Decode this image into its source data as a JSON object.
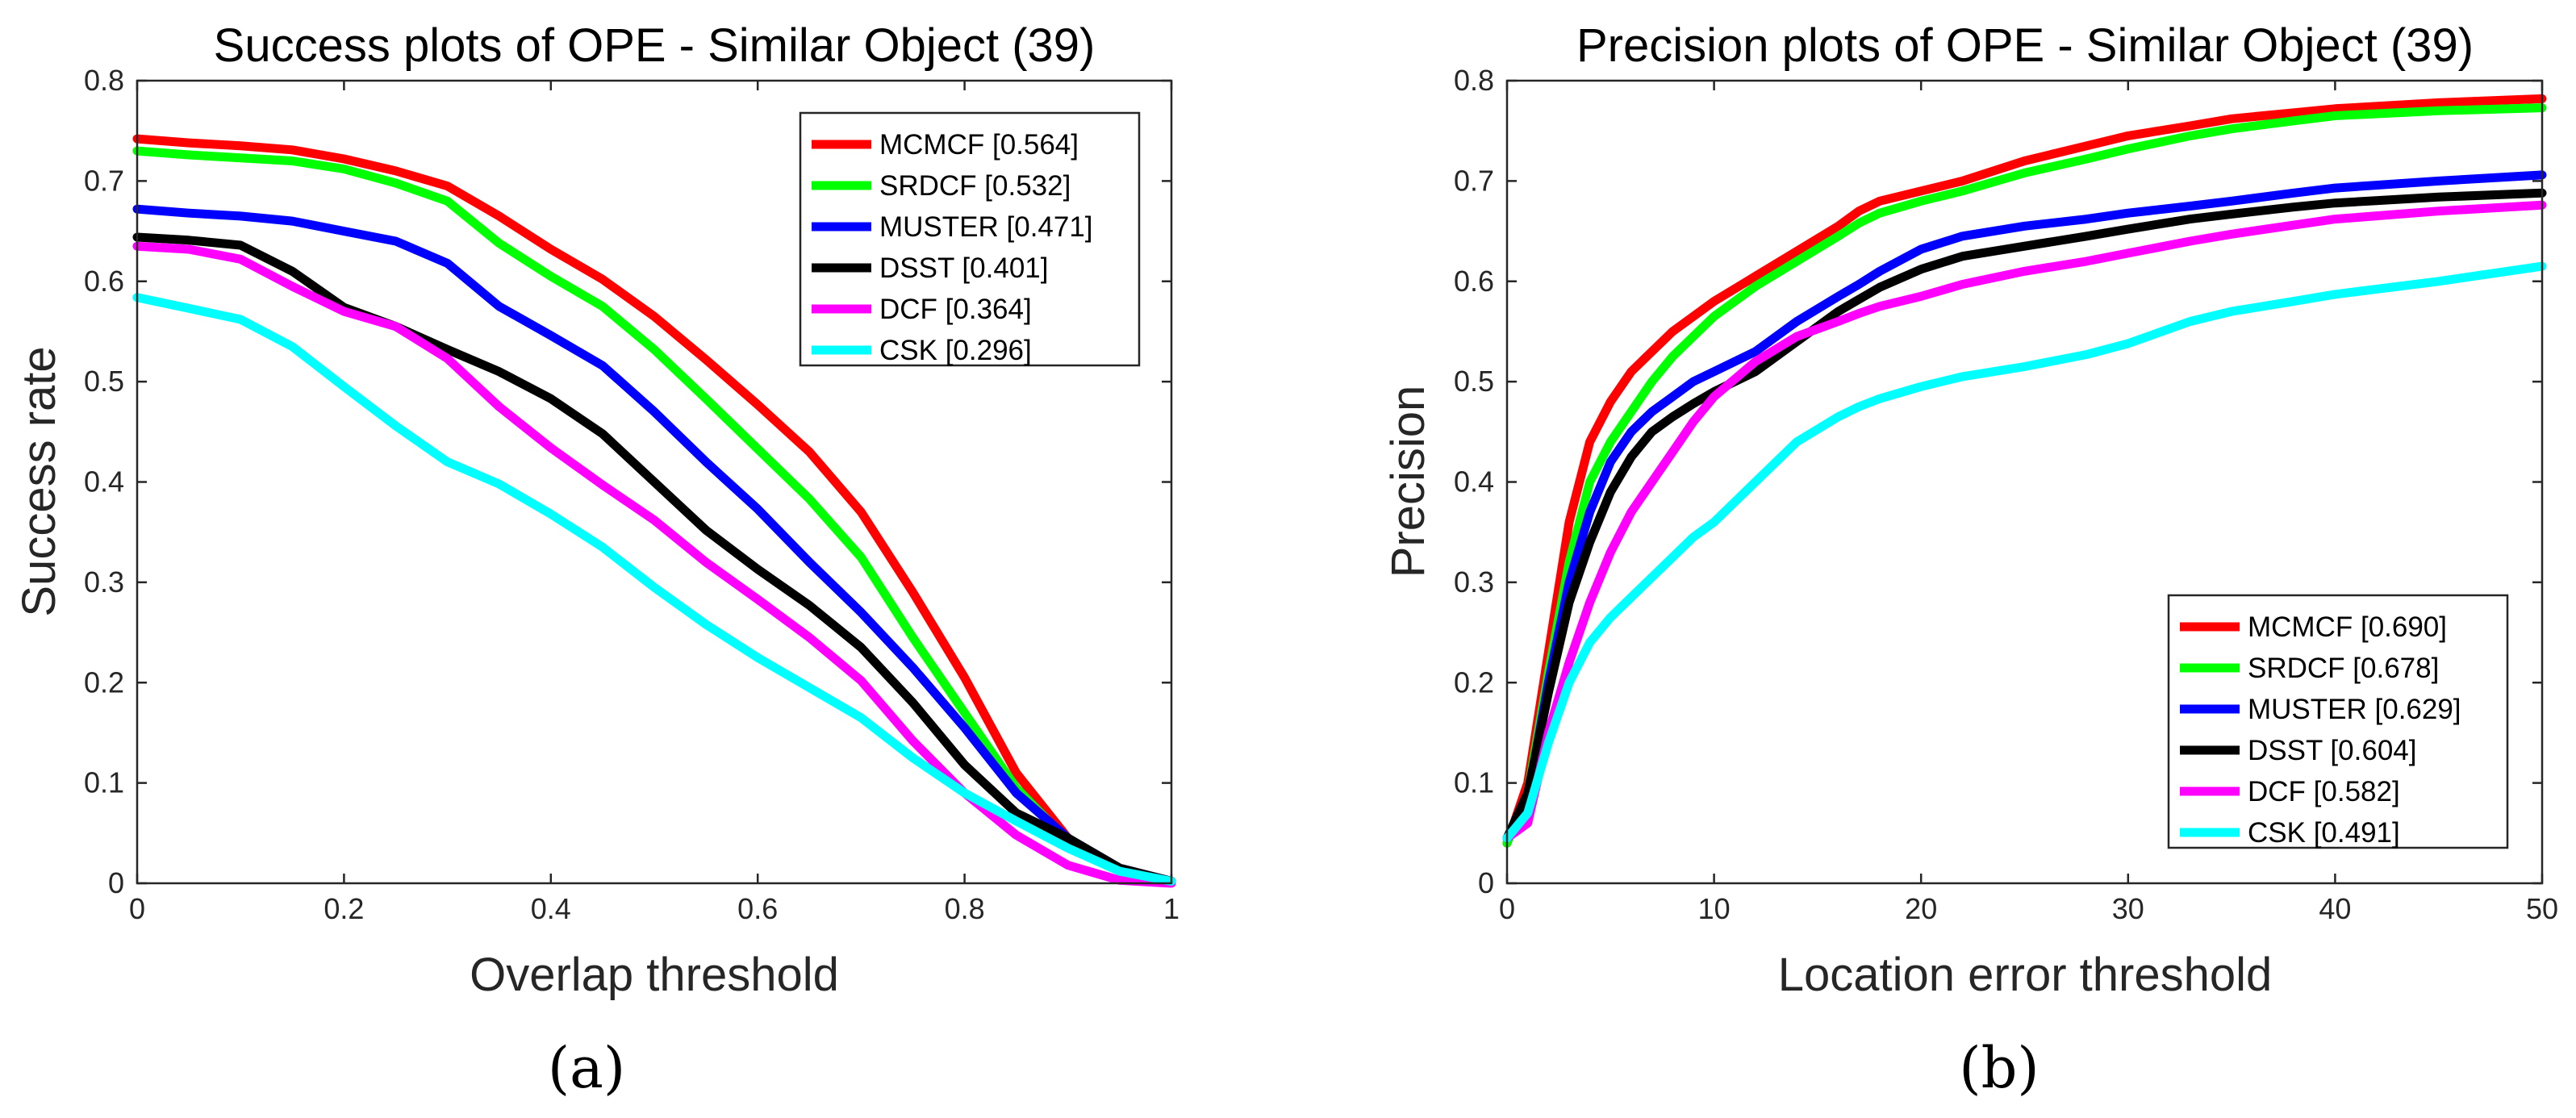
{
  "chart_data": [
    {
      "type": "line",
      "title": "Success plots of OPE - Similar Object (39)",
      "xlabel": "Overlap threshold",
      "ylabel": "Success rate",
      "xlim": [
        0,
        1
      ],
      "ylim": [
        0,
        0.8
      ],
      "xticks": [
        "0",
        "0.2",
        "0.4",
        "0.6",
        "0.8",
        "1"
      ],
      "yticks": [
        "0",
        "0.1",
        "0.2",
        "0.3",
        "0.4",
        "0.5",
        "0.6",
        "0.7",
        "0.8"
      ],
      "legend_position": "top-right",
      "caption": "(a)",
      "x": [
        0,
        0.05,
        0.1,
        0.15,
        0.2,
        0.25,
        0.3,
        0.35,
        0.4,
        0.45,
        0.5,
        0.55,
        0.6,
        0.65,
        0.7,
        0.75,
        0.8,
        0.85,
        0.9,
        0.95,
        1.0
      ],
      "series": [
        {
          "name": "MCMCF [0.564]",
          "color": "#ff0000",
          "values": [
            0.742,
            0.738,
            0.735,
            0.731,
            0.722,
            0.71,
            0.695,
            0.665,
            0.632,
            0.602,
            0.565,
            0.522,
            0.477,
            0.43,
            0.37,
            0.29,
            0.205,
            0.11,
            0.045,
            0.012,
            0.002
          ]
        },
        {
          "name": "SRDCF [0.532]",
          "color": "#00ff00",
          "values": [
            0.73,
            0.726,
            0.723,
            0.72,
            0.712,
            0.698,
            0.68,
            0.638,
            0.605,
            0.575,
            0.532,
            0.483,
            0.433,
            0.383,
            0.325,
            0.245,
            0.17,
            0.095,
            0.042,
            0.012,
            0.002
          ]
        },
        {
          "name": "MUSTER [0.471]",
          "color": "#0000ff",
          "values": [
            0.672,
            0.668,
            0.665,
            0.66,
            0.65,
            0.64,
            0.618,
            0.575,
            0.546,
            0.516,
            0.47,
            0.42,
            0.373,
            0.32,
            0.27,
            0.215,
            0.155,
            0.09,
            0.045,
            0.015,
            0.002
          ]
        },
        {
          "name": "DSST [0.401]",
          "color": "#000000",
          "values": [
            0.644,
            0.641,
            0.636,
            0.61,
            0.574,
            0.555,
            0.532,
            0.51,
            0.483,
            0.448,
            0.4,
            0.352,
            0.313,
            0.277,
            0.235,
            0.18,
            0.118,
            0.07,
            0.045,
            0.015,
            0.002
          ]
        },
        {
          "name": "DCF [0.364]",
          "color": "#ff00ff",
          "values": [
            0.635,
            0.632,
            0.622,
            0.595,
            0.57,
            0.555,
            0.523,
            0.475,
            0.434,
            0.397,
            0.362,
            0.32,
            0.283,
            0.245,
            0.202,
            0.142,
            0.09,
            0.048,
            0.018,
            0.003,
            0.0
          ]
        },
        {
          "name": "CSK [0.296]",
          "color": "#00ffff",
          "values": [
            0.584,
            0.573,
            0.562,
            0.535,
            0.495,
            0.456,
            0.42,
            0.398,
            0.368,
            0.335,
            0.295,
            0.258,
            0.225,
            0.195,
            0.165,
            0.125,
            0.09,
            0.062,
            0.035,
            0.012,
            0.002
          ]
        }
      ]
    },
    {
      "type": "line",
      "title": "Precision plots of OPE - Similar Object (39)",
      "xlabel": "Location error threshold",
      "ylabel": "Precision",
      "xlim": [
        0,
        50
      ],
      "ylim": [
        0,
        0.8
      ],
      "xticks": [
        "0",
        "10",
        "20",
        "30",
        "40",
        "50"
      ],
      "yticks": [
        "0",
        "0.1",
        "0.2",
        "0.3",
        "0.4",
        "0.5",
        "0.6",
        "0.7",
        "0.8"
      ],
      "legend_position": "bottom-right",
      "caption": "(b)",
      "x": [
        0,
        1,
        2,
        3,
        4,
        5,
        6,
        7,
        8,
        9,
        10,
        12,
        14,
        16,
        17,
        18,
        20,
        22,
        25,
        28,
        30,
        33,
        35,
        38,
        40,
        45,
        50
      ],
      "series": [
        {
          "name": "MCMCF [0.690]",
          "color": "#ff0000",
          "values": [
            0.04,
            0.1,
            0.23,
            0.36,
            0.44,
            0.48,
            0.51,
            0.53,
            0.55,
            0.565,
            0.58,
            0.605,
            0.63,
            0.655,
            0.67,
            0.68,
            0.69,
            0.7,
            0.72,
            0.735,
            0.745,
            0.755,
            0.762,
            0.768,
            0.772,
            0.778,
            0.782
          ]
        },
        {
          "name": "SRDCF [0.678]",
          "color": "#00ff00",
          "values": [
            0.04,
            0.09,
            0.21,
            0.32,
            0.4,
            0.44,
            0.47,
            0.5,
            0.525,
            0.545,
            0.565,
            0.595,
            0.62,
            0.645,
            0.658,
            0.668,
            0.68,
            0.69,
            0.708,
            0.722,
            0.732,
            0.745,
            0.752,
            0.76,
            0.765,
            0.77,
            0.773
          ]
        },
        {
          "name": "MUSTER [0.629]",
          "color": "#0000ff",
          "values": [
            0.045,
            0.085,
            0.2,
            0.3,
            0.37,
            0.42,
            0.45,
            0.47,
            0.485,
            0.5,
            0.51,
            0.53,
            0.56,
            0.585,
            0.597,
            0.61,
            0.632,
            0.645,
            0.655,
            0.662,
            0.668,
            0.675,
            0.68,
            0.688,
            0.693,
            0.7,
            0.706
          ]
        },
        {
          "name": "DSST [0.604]",
          "color": "#000000",
          "values": [
            0.045,
            0.09,
            0.19,
            0.28,
            0.34,
            0.39,
            0.425,
            0.45,
            0.465,
            0.478,
            0.49,
            0.51,
            0.54,
            0.57,
            0.582,
            0.594,
            0.612,
            0.625,
            0.635,
            0.645,
            0.652,
            0.662,
            0.667,
            0.674,
            0.678,
            0.684,
            0.688
          ]
        },
        {
          "name": "DCF [0.582]",
          "color": "#ff00ff",
          "values": [
            0.045,
            0.06,
            0.15,
            0.22,
            0.28,
            0.33,
            0.37,
            0.4,
            0.43,
            0.46,
            0.485,
            0.52,
            0.545,
            0.56,
            0.568,
            0.575,
            0.585,
            0.597,
            0.61,
            0.62,
            0.628,
            0.64,
            0.647,
            0.656,
            0.662,
            0.67,
            0.676
          ]
        },
        {
          "name": "CSK [0.491]",
          "color": "#00ffff",
          "values": [
            0.045,
            0.07,
            0.14,
            0.2,
            0.24,
            0.265,
            0.285,
            0.305,
            0.325,
            0.345,
            0.36,
            0.4,
            0.44,
            0.465,
            0.475,
            0.483,
            0.495,
            0.505,
            0.515,
            0.527,
            0.538,
            0.56,
            0.57,
            0.58,
            0.587,
            0.6,
            0.615
          ]
        }
      ]
    }
  ]
}
